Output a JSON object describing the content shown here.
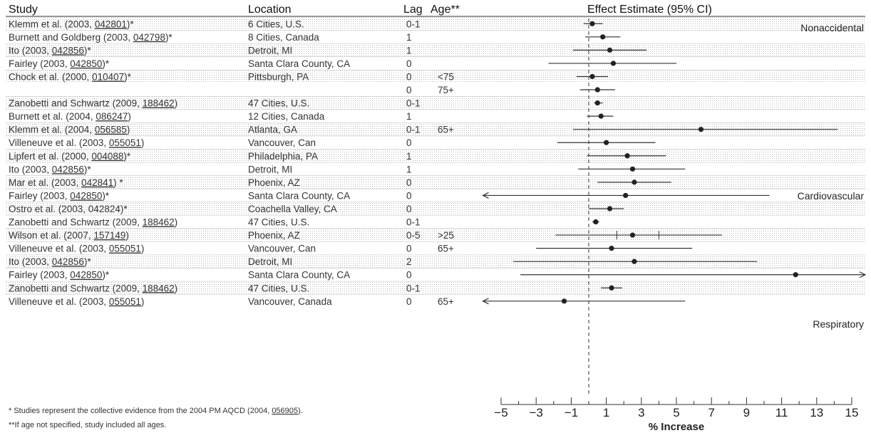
{
  "headers": {
    "study": "Study",
    "location": "Location",
    "lag": "Lag",
    "age": "Age**",
    "effect": "Effect Estimate (95% CI)"
  },
  "groups": [
    "Nonaccidental",
    "Cardiovascular",
    "Respiratory"
  ],
  "rows": [
    {
      "study": "Klemm et al. (2003, ",
      "ref": "042801",
      "tail": ")*",
      "location": "6 Cities, U.S.",
      "lag": "0-1",
      "age": "",
      "group": "Nonaccidental"
    },
    {
      "study": "Burnett and Goldberg (2003, ",
      "ref": "042798",
      "tail": ")*",
      "location": "8 Cities, Canada",
      "lag": "1",
      "age": "",
      "group": "Nonaccidental"
    },
    {
      "study": "Ito (2003, ",
      "ref": "042856",
      "tail": ")*",
      "location": "Detroit, MI",
      "lag": "1",
      "age": "",
      "group": "Nonaccidental"
    },
    {
      "study": "Fairley (2003, ",
      "ref": "042850",
      "tail": ")*",
      "location": "Santa Clara County, CA",
      "lag": "0",
      "age": "",
      "group": "Nonaccidental"
    },
    {
      "study": "Chock et al. (2000, ",
      "ref": "010407",
      "tail": ")*",
      "location": "Pittsburgh, PA",
      "lag": "0",
      "age": "<75",
      "group": "Nonaccidental"
    },
    {
      "study": "",
      "ref": "",
      "tail": "",
      "location": "",
      "lag": "0",
      "age": "75+",
      "group": "Nonaccidental"
    },
    {
      "study": "Zanobetti and Schwartz (2009, ",
      "ref": "188462",
      "tail": ")",
      "location": "47 Cities, U.S.",
      "lag": "0-1",
      "age": "",
      "group": "Nonaccidental"
    },
    {
      "study": "Burnett et al. (2004, ",
      "ref": "086247",
      "tail": ")",
      "location": "12 Cities, Canada",
      "lag": "1",
      "age": "",
      "group": "Nonaccidental"
    },
    {
      "study": "Klemm et al. (2004, ",
      "ref": "056585",
      "tail": ")",
      "location": "Atlanta, GA",
      "lag": "0-1",
      "age": "65+",
      "group": "Nonaccidental"
    },
    {
      "study": "Villeneuve et al. (2003, ",
      "ref": "055051",
      "tail": ")",
      "location": "Vancouver, Can",
      "lag": "0",
      "age": "",
      "group": "Nonaccidental"
    },
    {
      "study": "Lipfert et al. (2000, ",
      "ref": "004088",
      "tail": ")*",
      "location": "Philadelphia, PA",
      "lag": "1",
      "age": "",
      "group": "Cardiovascular"
    },
    {
      "study": "Ito (2003, ",
      "ref": "042856",
      "tail": ")*",
      "location": "Detroit, MI",
      "lag": "1",
      "age": "",
      "group": "Cardiovascular"
    },
    {
      "study": "Mar et al. (2003, ",
      "ref": "042841",
      "tail": ") *",
      "location": "Phoenix, AZ",
      "lag": "0",
      "age": "",
      "group": "Cardiovascular"
    },
    {
      "study": "Fairley (2003, ",
      "ref": "042850",
      "tail": ")*",
      "location": "Santa Clara County, CA",
      "lag": "0",
      "age": "",
      "group": "Cardiovascular"
    },
    {
      "study": "Ostro et al. (2003, 042824)*",
      "ref": "",
      "tail": "",
      "location": "Coachella Valley, CA",
      "lag": "0",
      "age": "",
      "group": "Cardiovascular"
    },
    {
      "study": "Zanobetti and Schwartz (2009, ",
      "ref": "188462",
      "tail": ")",
      "location": "47 Cities, U.S.",
      "lag": "0-1",
      "age": "",
      "group": "Cardiovascular"
    },
    {
      "study": "Wilson et al. (2007, ",
      "ref": "157149",
      "tail": ")",
      "location": "Phoenix, AZ",
      "lag": "0-5",
      "age": ">25",
      "group": "Cardiovascular"
    },
    {
      "study": "Villeneuve et al. (2003, ",
      "ref": "055051",
      "tail": ")",
      "location": "Vancouver, Can",
      "lag": "0",
      "age": "65+",
      "group": "Cardiovascular"
    },
    {
      "study": "Ito (2003, ",
      "ref": "042856",
      "tail": ")*",
      "location": "Detroit, MI",
      "lag": "2",
      "age": "",
      "group": "Respiratory"
    },
    {
      "study": "Fairley (2003, ",
      "ref": "042850",
      "tail": ")*",
      "location": "Santa Clara County, CA",
      "lag": "0",
      "age": "",
      "group": "Respiratory"
    },
    {
      "study": "Zanobetti and Schwartz (2009, ",
      "ref": "188462",
      "tail": ")",
      "location": "47 Cities, U.S.",
      "lag": "0-1",
      "age": "",
      "group": "Respiratory"
    },
    {
      "study": "Villeneuve et al. (2003, ",
      "ref": "055051",
      "tail": ")",
      "location": "Vancouver, Canada",
      "lag": "0",
      "age": "65+",
      "group": "Respiratory"
    }
  ],
  "chart_data": {
    "type": "forest",
    "xlabel": "% Increase",
    "xlim": [
      -5,
      15
    ],
    "ticks": [
      -5,
      -3,
      -1,
      1,
      3,
      5,
      7,
      9,
      11,
      13,
      15
    ],
    "reference_line": 0,
    "estimates": [
      {
        "est": 0.2,
        "lo": -0.3,
        "hi": 0.8
      },
      {
        "est": 0.8,
        "lo": -0.2,
        "hi": 1.8
      },
      {
        "est": 1.2,
        "lo": -0.9,
        "hi": 3.3
      },
      {
        "est": 1.4,
        "lo": -2.3,
        "hi": 5.0
      },
      {
        "est": 0.2,
        "lo": -0.7,
        "hi": 1.1
      },
      {
        "est": 0.5,
        "lo": -0.5,
        "hi": 1.5
      },
      {
        "est": 0.5,
        "lo": 0.3,
        "hi": 0.8
      },
      {
        "est": 0.7,
        "lo": -0.1,
        "hi": 1.4
      },
      {
        "est": 6.4,
        "lo": -0.9,
        "hi": 14.2
      },
      {
        "est": 1.0,
        "lo": -1.8,
        "hi": 3.8
      },
      {
        "est": 2.2,
        "lo": -0.1,
        "hi": 4.4
      },
      {
        "est": 2.5,
        "lo": -0.6,
        "hi": 5.5
      },
      {
        "est": 2.6,
        "lo": 0.5,
        "hi": 4.7
      },
      {
        "est": 2.1,
        "lo": -6.0,
        "hi": 10.3,
        "lo_arrow": true
      },
      {
        "est": 1.2,
        "lo": 0.0,
        "hi": 2.0
      },
      {
        "est": 0.4,
        "lo": 0.2,
        "hi": 0.6
      },
      {
        "est": 2.5,
        "lo": -1.9,
        "hi": 7.6,
        "extra_ticks": [
          1.6,
          4.0
        ]
      },
      {
        "est": 1.3,
        "lo": -3.0,
        "hi": 5.9
      },
      {
        "est": 2.6,
        "lo": -4.3,
        "hi": 9.6
      },
      {
        "est": 11.8,
        "lo": -3.9,
        "hi": 16.0,
        "hi_arrow": true
      },
      {
        "est": 1.3,
        "lo": 0.7,
        "hi": 1.9
      },
      {
        "est": -1.4,
        "lo": -6.0,
        "hi": 5.5,
        "lo_arrow": true
      }
    ]
  },
  "footnotes": {
    "f1_text": "* Studies represent the collective evidence from the 2004 PM AQCD (2004, ",
    "f1_ref": "056905",
    "f1_tail": ").",
    "f2": "**If age not specified, study included all ages."
  }
}
